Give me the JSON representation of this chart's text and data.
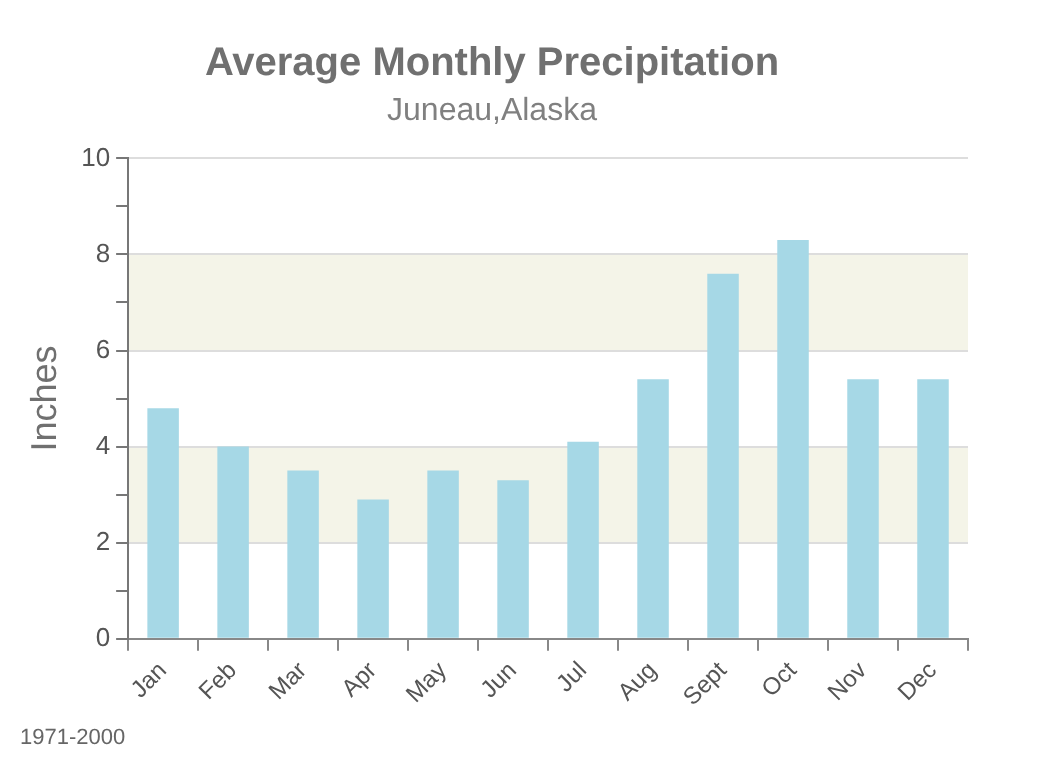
{
  "chart_data": {
    "type": "bar",
    "title": "Average Monthly Precipitation",
    "subtitle": "Juneau,Alaska",
    "ylabel": "Inches",
    "categories": [
      "Jan",
      "Feb",
      "Mar",
      "Apr",
      "May",
      "Jun",
      "Jul",
      "Aug",
      "Sept",
      "Oct",
      "Nov",
      "Dec"
    ],
    "values": [
      4.8,
      4.0,
      3.5,
      2.9,
      3.5,
      3.3,
      4.1,
      5.4,
      7.6,
      8.3,
      5.4,
      5.4
    ],
    "color": "#a6d8e6",
    "ylim": [
      0,
      10
    ],
    "yticks": [
      0,
      {
        "value": 1,
        "label": null
      },
      2,
      {
        "value": 3,
        "label": null
      },
      4,
      {
        "value": 5,
        "label": null
      },
      6,
      {
        "value": 7,
        "label": null
      },
      8,
      {
        "value": 9,
        "label": null
      },
      10
    ],
    "bands": [
      {
        "axis": "y",
        "from": 2,
        "to": 4,
        "color": "#f4f4e8"
      },
      {
        "axis": "y",
        "from": 6,
        "to": 8,
        "color": "#f4f4e8"
      }
    ],
    "grid": "y",
    "legend": false,
    "annotations": [
      "1971-2000"
    ]
  }
}
